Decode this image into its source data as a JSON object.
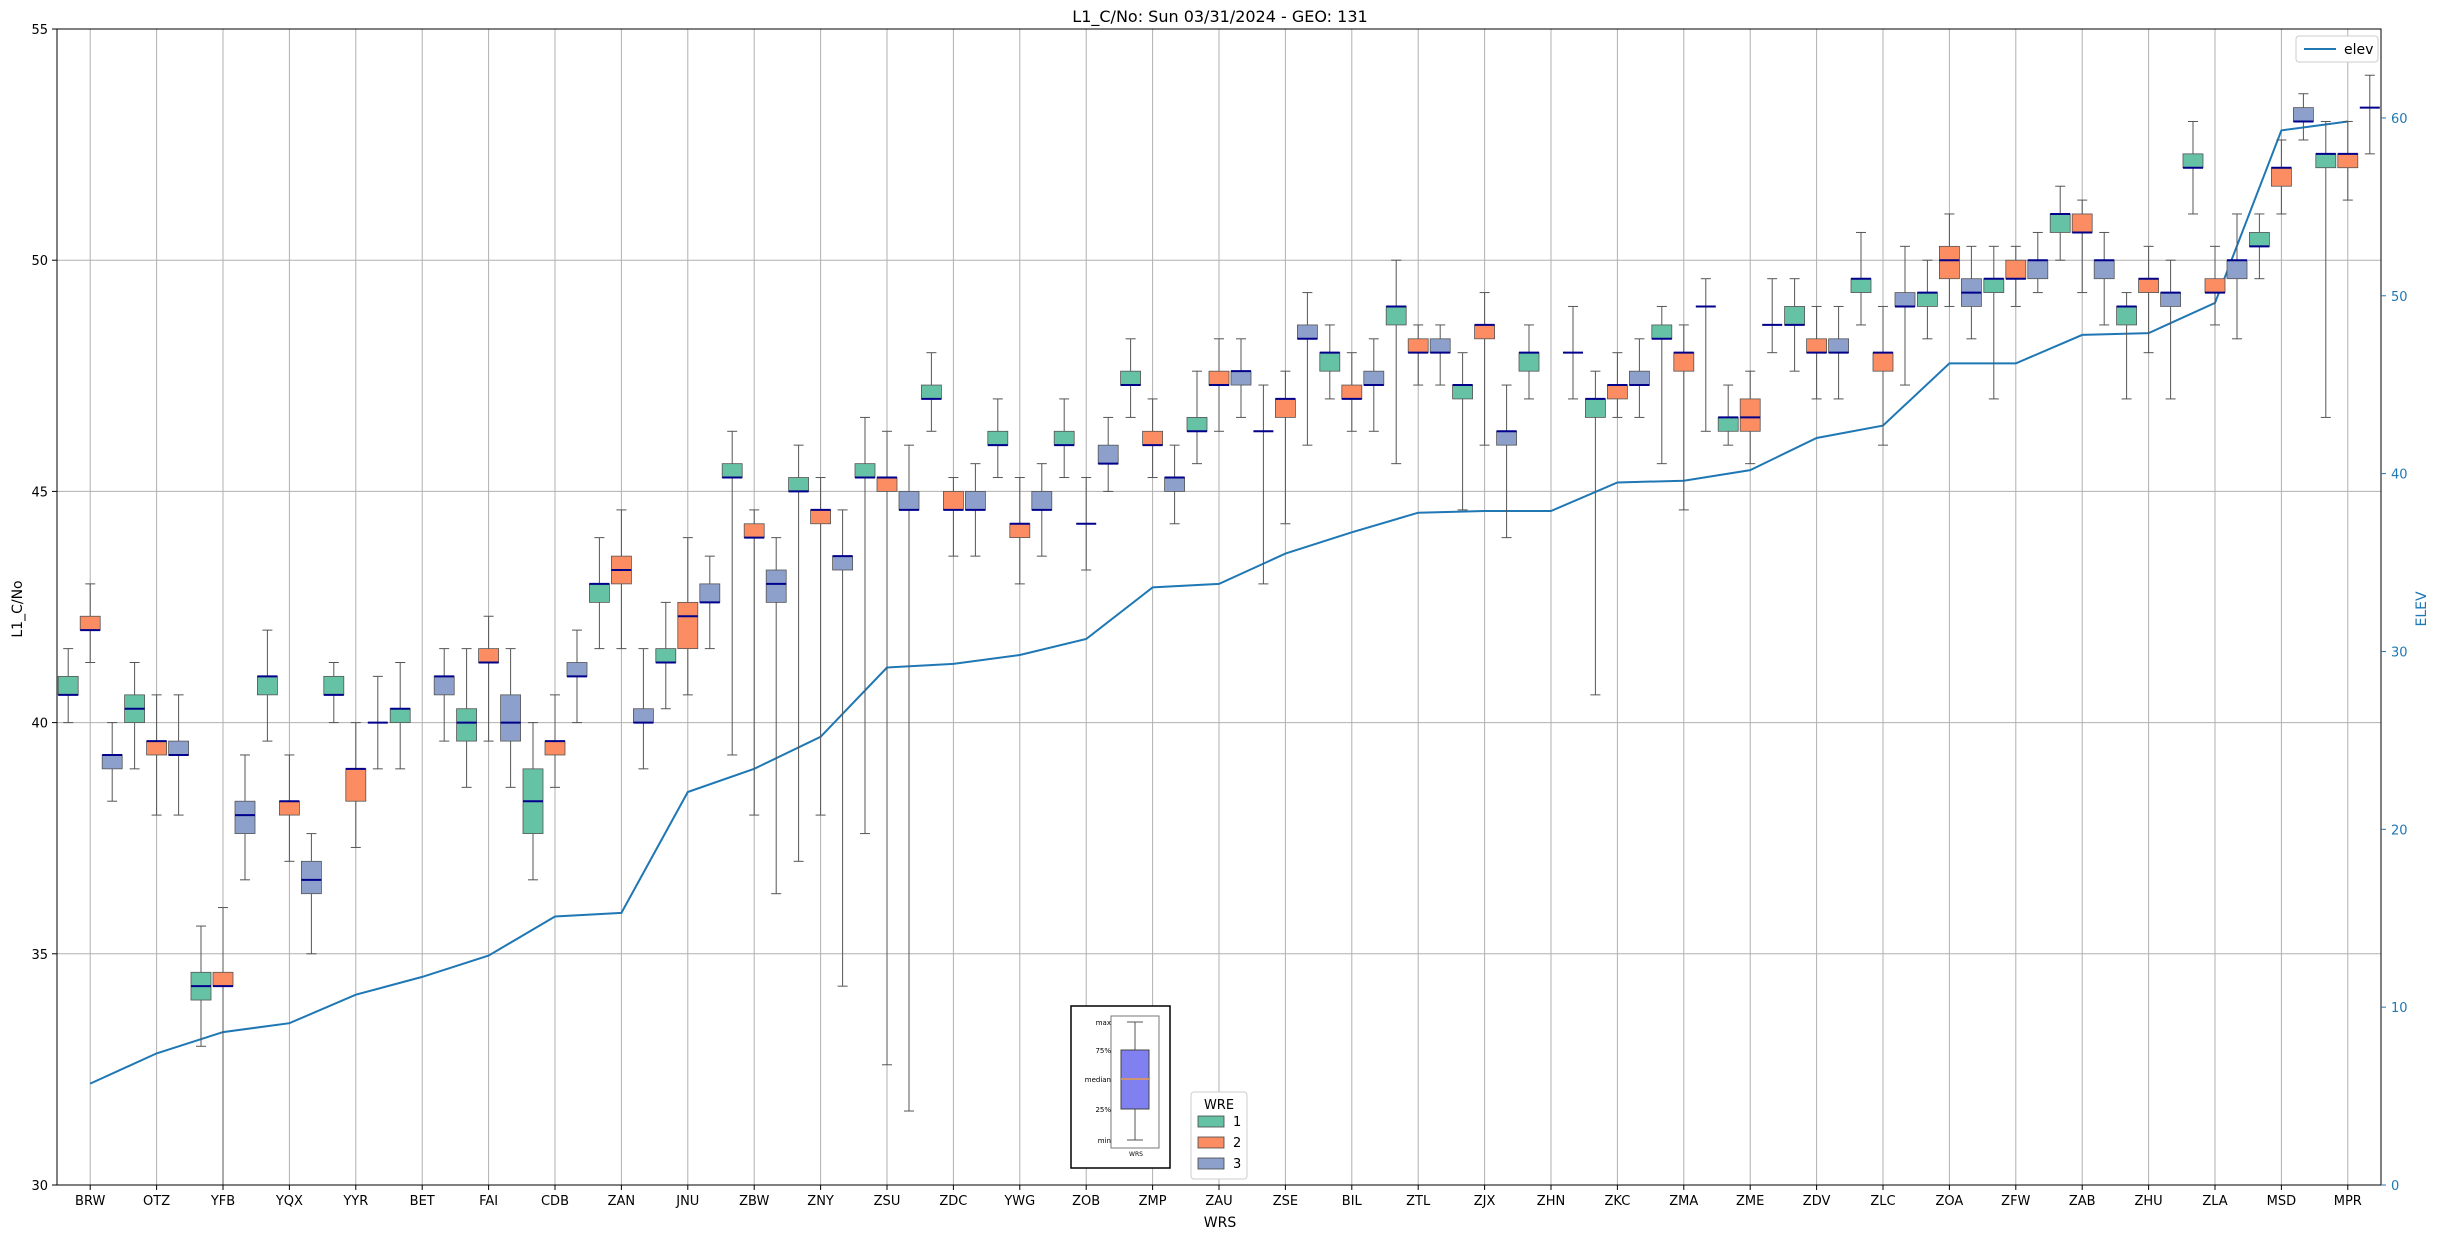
{
  "colors": {
    "wre1": "#66c2a5",
    "wre2": "#fc8d62",
    "wre3": "#8da0cb",
    "median": "#00008b",
    "elev": "#1f77b4",
    "grid": "#b0b0b0",
    "whisker": "#555555",
    "inset_box": "#8080f0"
  },
  "chart_data": {
    "type": "box",
    "title": "L1_C/No: Sun 03/31/2024 - GEO: 131",
    "xlabel": "WRS",
    "ylabel": "L1_C/No",
    "y2label": "ELEV",
    "ylim": [
      30,
      55
    ],
    "y2lim": [
      0,
      65
    ],
    "yticks": [
      "30",
      "35",
      "40",
      "45",
      "50",
      "55"
    ],
    "y2ticks": [
      "0",
      "10",
      "20",
      "30",
      "40",
      "50",
      "60"
    ],
    "grid": true,
    "categories": [
      "BRW",
      "OTZ",
      "YFB",
      "YQX",
      "YYR",
      "BET",
      "FAI",
      "CDB",
      "ZAN",
      "JNU",
      "ZBW",
      "ZNY",
      "ZSU",
      "ZDC",
      "YWG",
      "ZOB",
      "ZMP",
      "ZAU",
      "ZSE",
      "BIL",
      "ZTL",
      "ZJX",
      "ZHN",
      "ZKC",
      "ZMA",
      "ZME",
      "ZDV",
      "ZLC",
      "ZOA",
      "ZFW",
      "ZAB",
      "ZHU",
      "ZLA",
      "MSD",
      "MPR"
    ],
    "legend_wre": {
      "title": "WRE",
      "entries": [
        "1",
        "2",
        "3"
      ],
      "placement": "lower-center"
    },
    "legend_elev": {
      "entries": [
        "elev"
      ],
      "placement": "top-right"
    },
    "elev": [
      5.7,
      7.4,
      8.6,
      9.1,
      10.7,
      11.7,
      12.9,
      15.1,
      15.3,
      22.1,
      23.4,
      25.2,
      29.1,
      29.3,
      29.8,
      30.7,
      33.6,
      33.8,
      35.5,
      36.7,
      37.8,
      37.9,
      37.9,
      39.5,
      39.6,
      40.2,
      42.0,
      42.7,
      46.2,
      46.2,
      47.8,
      47.9,
      49.6,
      59.3,
      59.8
    ],
    "boxes": [
      {
        "c": "BRW",
        "w": 1,
        "min": 40.0,
        "q1": 40.6,
        "med": 40.6,
        "q3": 41.0,
        "max": 41.6
      },
      {
        "c": "BRW",
        "w": 2,
        "min": 41.3,
        "q1": 42.0,
        "med": 42.0,
        "q3": 42.3,
        "max": 43.0
      },
      {
        "c": "BRW",
        "w": 3,
        "min": 38.3,
        "q1": 39.0,
        "med": 39.3,
        "q3": 39.3,
        "max": 40.0
      },
      {
        "c": "OTZ",
        "w": 1,
        "min": 39.0,
        "q1": 40.0,
        "med": 40.3,
        "q3": 40.6,
        "max": 41.3
      },
      {
        "c": "OTZ",
        "w": 2,
        "min": 38.0,
        "q1": 39.3,
        "med": 39.6,
        "q3": 39.6,
        "max": 40.6
      },
      {
        "c": "OTZ",
        "w": 3,
        "min": 38.0,
        "q1": 39.3,
        "med": 39.3,
        "q3": 39.6,
        "max": 40.6
      },
      {
        "c": "YFB",
        "w": 1,
        "min": 33.0,
        "q1": 34.0,
        "med": 34.3,
        "q3": 34.6,
        "max": 35.6
      },
      {
        "c": "YFB",
        "w": 2,
        "min": 30.0,
        "q1": 34.3,
        "med": 34.3,
        "q3": 34.6,
        "max": 36.0
      },
      {
        "c": "YFB",
        "w": 3,
        "min": 36.6,
        "q1": 37.6,
        "med": 38.0,
        "q3": 38.3,
        "max": 39.3
      },
      {
        "c": "YQX",
        "w": 1,
        "min": 39.6,
        "q1": 40.6,
        "med": 41.0,
        "q3": 41.0,
        "max": 42.0
      },
      {
        "c": "YQX",
        "w": 2,
        "min": 37.0,
        "q1": 38.0,
        "med": 38.3,
        "q3": 38.3,
        "max": 39.3
      },
      {
        "c": "YQX",
        "w": 3,
        "min": 35.0,
        "q1": 36.3,
        "med": 36.6,
        "q3": 37.0,
        "max": 37.6
      },
      {
        "c": "YYR",
        "w": 1,
        "min": 40.0,
        "q1": 40.6,
        "med": 40.6,
        "q3": 41.0,
        "max": 41.3
      },
      {
        "c": "YYR",
        "w": 2,
        "min": 37.3,
        "q1": 38.3,
        "med": 39.0,
        "q3": 39.0,
        "max": 40.0
      },
      {
        "c": "YYR",
        "w": 3,
        "min": 39.0,
        "q1": 40.0,
        "med": 40.0,
        "q3": 40.0,
        "max": 41.0
      },
      {
        "c": "BET",
        "w": 1,
        "min": 39.0,
        "q1": 40.0,
        "med": 40.3,
        "q3": 40.3,
        "max": 41.3
      },
      {
        "c": "BET",
        "w": 3,
        "min": 39.6,
        "q1": 40.6,
        "med": 41.0,
        "q3": 41.0,
        "max": 41.6
      },
      {
        "c": "FAI",
        "w": 1,
        "min": 38.6,
        "q1": 39.6,
        "med": 40.0,
        "q3": 40.3,
        "max": 41.6
      },
      {
        "c": "FAI",
        "w": 2,
        "min": 39.6,
        "q1": 41.3,
        "med": 41.3,
        "q3": 41.6,
        "max": 42.3
      },
      {
        "c": "FAI",
        "w": 3,
        "min": 38.6,
        "q1": 39.6,
        "med": 40.0,
        "q3": 40.6,
        "max": 41.6
      },
      {
        "c": "CDB",
        "w": 1,
        "min": 36.6,
        "q1": 37.6,
        "med": 38.3,
        "q3": 39.0,
        "max": 40.0
      },
      {
        "c": "CDB",
        "w": 2,
        "min": 38.6,
        "q1": 39.3,
        "med": 39.6,
        "q3": 39.6,
        "max": 40.6
      },
      {
        "c": "CDB",
        "w": 3,
        "min": 40.0,
        "q1": 41.0,
        "med": 41.0,
        "q3": 41.3,
        "max": 42.0
      },
      {
        "c": "ZAN",
        "w": 1,
        "min": 41.6,
        "q1": 42.6,
        "med": 43.0,
        "q3": 43.0,
        "max": 44.0
      },
      {
        "c": "ZAN",
        "w": 2,
        "min": 41.6,
        "q1": 43.0,
        "med": 43.3,
        "q3": 43.6,
        "max": 44.6
      },
      {
        "c": "ZAN",
        "w": 3,
        "min": 39.0,
        "q1": 40.0,
        "med": 40.0,
        "q3": 40.3,
        "max": 41.6
      },
      {
        "c": "JNU",
        "w": 1,
        "min": 40.3,
        "q1": 41.3,
        "med": 41.3,
        "q3": 41.6,
        "max": 42.6
      },
      {
        "c": "JNU",
        "w": 2,
        "min": 40.6,
        "q1": 41.6,
        "med": 42.3,
        "q3": 42.6,
        "max": 44.0
      },
      {
        "c": "JNU",
        "w": 3,
        "min": 41.6,
        "q1": 42.6,
        "med": 42.6,
        "q3": 43.0,
        "max": 43.6
      },
      {
        "c": "ZBW",
        "w": 1,
        "min": 39.3,
        "q1": 45.3,
        "med": 45.3,
        "q3": 45.6,
        "max": 46.3
      },
      {
        "c": "ZBW",
        "w": 2,
        "min": 38.0,
        "q1": 44.0,
        "med": 44.0,
        "q3": 44.3,
        "max": 44.6
      },
      {
        "c": "ZBW",
        "w": 3,
        "min": 36.3,
        "q1": 42.6,
        "med": 43.0,
        "q3": 43.3,
        "max": 44.0
      },
      {
        "c": "ZNY",
        "w": 1,
        "min": 37.0,
        "q1": 45.0,
        "med": 45.0,
        "q3": 45.3,
        "max": 46.0
      },
      {
        "c": "ZNY",
        "w": 2,
        "min": 38.0,
        "q1": 44.3,
        "med": 44.6,
        "q3": 44.6,
        "max": 45.3
      },
      {
        "c": "ZNY",
        "w": 3,
        "min": 34.3,
        "q1": 43.3,
        "med": 43.6,
        "q3": 43.6,
        "max": 44.6
      },
      {
        "c": "ZSU",
        "w": 1,
        "min": 37.6,
        "q1": 45.3,
        "med": 45.3,
        "q3": 45.6,
        "max": 46.6
      },
      {
        "c": "ZSU",
        "w": 2,
        "min": 32.6,
        "q1": 45.0,
        "med": 45.3,
        "q3": 45.3,
        "max": 46.3
      },
      {
        "c": "ZSU",
        "w": 3,
        "min": 31.6,
        "q1": 44.6,
        "med": 44.6,
        "q3": 45.0,
        "max": 46.0
      },
      {
        "c": "ZDC",
        "w": 1,
        "min": 46.3,
        "q1": 47.0,
        "med": 47.0,
        "q3": 47.3,
        "max": 48.0
      },
      {
        "c": "ZDC",
        "w": 2,
        "min": 43.6,
        "q1": 44.6,
        "med": 44.6,
        "q3": 45.0,
        "max": 45.3
      },
      {
        "c": "ZDC",
        "w": 3,
        "min": 43.6,
        "q1": 44.6,
        "med": 44.6,
        "q3": 45.0,
        "max": 45.6
      },
      {
        "c": "YWG",
        "w": 1,
        "min": 45.3,
        "q1": 46.0,
        "med": 46.0,
        "q3": 46.3,
        "max": 47.0
      },
      {
        "c": "YWG",
        "w": 2,
        "min": 43.0,
        "q1": 44.0,
        "med": 44.3,
        "q3": 44.3,
        "max": 45.3
      },
      {
        "c": "YWG",
        "w": 3,
        "min": 43.6,
        "q1": 44.6,
        "med": 44.6,
        "q3": 45.0,
        "max": 45.6
      },
      {
        "c": "ZOB",
        "w": 1,
        "min": 45.3,
        "q1": 46.0,
        "med": 46.0,
        "q3": 46.3,
        "max": 47.0
      },
      {
        "c": "ZOB",
        "w": 2,
        "min": 43.3,
        "q1": 44.3,
        "med": 44.3,
        "q3": 44.3,
        "max": 45.3
      },
      {
        "c": "ZOB",
        "w": 3,
        "min": 45.0,
        "q1": 45.6,
        "med": 45.6,
        "q3": 46.0,
        "max": 46.6
      },
      {
        "c": "ZMP",
        "w": 1,
        "min": 46.6,
        "q1": 47.3,
        "med": 47.3,
        "q3": 47.6,
        "max": 48.3
      },
      {
        "c": "ZMP",
        "w": 2,
        "min": 45.3,
        "q1": 46.0,
        "med": 46.0,
        "q3": 46.3,
        "max": 47.0
      },
      {
        "c": "ZMP",
        "w": 3,
        "min": 44.3,
        "q1": 45.0,
        "med": 45.3,
        "q3": 45.3,
        "max": 46.0
      },
      {
        "c": "ZAU",
        "w": 1,
        "min": 45.6,
        "q1": 46.3,
        "med": 46.3,
        "q3": 46.6,
        "max": 47.6
      },
      {
        "c": "ZAU",
        "w": 2,
        "min": 46.3,
        "q1": 47.3,
        "med": 47.3,
        "q3": 47.6,
        "max": 48.3
      },
      {
        "c": "ZAU",
        "w": 3,
        "min": 46.6,
        "q1": 47.3,
        "med": 47.6,
        "q3": 47.6,
        "max": 48.3
      },
      {
        "c": "ZSE",
        "w": 1,
        "min": 43.0,
        "q1": 46.3,
        "med": 46.3,
        "q3": 46.3,
        "max": 47.3
      },
      {
        "c": "ZSE",
        "w": 2,
        "min": 44.3,
        "q1": 46.6,
        "med": 47.0,
        "q3": 47.0,
        "max": 47.6
      },
      {
        "c": "ZSE",
        "w": 3,
        "min": 46.0,
        "q1": 48.3,
        "med": 48.3,
        "q3": 48.6,
        "max": 49.3
      },
      {
        "c": "BIL",
        "w": 1,
        "min": 47.0,
        "q1": 47.6,
        "med": 48.0,
        "q3": 48.0,
        "max": 48.6
      },
      {
        "c": "BIL",
        "w": 2,
        "min": 46.3,
        "q1": 47.0,
        "med": 47.0,
        "q3": 47.3,
        "max": 48.0
      },
      {
        "c": "BIL",
        "w": 3,
        "min": 46.3,
        "q1": 47.3,
        "med": 47.3,
        "q3": 47.6,
        "max": 48.3
      },
      {
        "c": "ZTL",
        "w": 1,
        "min": 45.6,
        "q1": 48.6,
        "med": 49.0,
        "q3": 49.0,
        "max": 50.0
      },
      {
        "c": "ZTL",
        "w": 2,
        "min": 47.3,
        "q1": 48.0,
        "med": 48.0,
        "q3": 48.3,
        "max": 48.6
      },
      {
        "c": "ZTL",
        "w": 3,
        "min": 47.3,
        "q1": 48.0,
        "med": 48.0,
        "q3": 48.3,
        "max": 48.6
      },
      {
        "c": "ZJX",
        "w": 1,
        "min": 44.6,
        "q1": 47.0,
        "med": 47.3,
        "q3": 47.3,
        "max": 48.0
      },
      {
        "c": "ZJX",
        "w": 2,
        "min": 46.0,
        "q1": 48.3,
        "med": 48.6,
        "q3": 48.6,
        "max": 49.3
      },
      {
        "c": "ZJX",
        "w": 3,
        "min": 44.0,
        "q1": 46.0,
        "med": 46.3,
        "q3": 46.3,
        "max": 47.3
      },
      {
        "c": "ZHN",
        "w": 1,
        "min": 47.0,
        "q1": 47.6,
        "med": 48.0,
        "q3": 48.0,
        "max": 48.6
      },
      {
        "c": "ZHN",
        "w": 3,
        "min": 47.0,
        "q1": 48.0,
        "med": 48.0,
        "q3": 48.0,
        "max": 49.0
      },
      {
        "c": "ZKC",
        "w": 1,
        "min": 40.6,
        "q1": 46.6,
        "med": 47.0,
        "q3": 47.0,
        "max": 47.6
      },
      {
        "c": "ZKC",
        "w": 2,
        "min": 46.6,
        "q1": 47.0,
        "med": 47.3,
        "q3": 47.3,
        "max": 48.0
      },
      {
        "c": "ZKC",
        "w": 3,
        "min": 46.6,
        "q1": 47.3,
        "med": 47.3,
        "q3": 47.6,
        "max": 48.3
      },
      {
        "c": "ZMA",
        "w": 1,
        "min": 45.6,
        "q1": 48.3,
        "med": 48.3,
        "q3": 48.6,
        "max": 49.0
      },
      {
        "c": "ZMA",
        "w": 2,
        "min": 44.6,
        "q1": 47.6,
        "med": 48.0,
        "q3": 48.0,
        "max": 48.6
      },
      {
        "c": "ZMA",
        "w": 3,
        "min": 46.3,
        "q1": 49.0,
        "med": 49.0,
        "q3": 49.0,
        "max": 49.6
      },
      {
        "c": "ZME",
        "w": 1,
        "min": 46.0,
        "q1": 46.3,
        "med": 46.6,
        "q3": 46.6,
        "max": 47.3
      },
      {
        "c": "ZME",
        "w": 2,
        "min": 45.6,
        "q1": 46.3,
        "med": 46.6,
        "q3": 47.0,
        "max": 47.6
      },
      {
        "c": "ZME",
        "w": 3,
        "min": 48.0,
        "q1": 48.6,
        "med": 48.6,
        "q3": 48.6,
        "max": 49.6
      },
      {
        "c": "ZDV",
        "w": 1,
        "min": 47.6,
        "q1": 48.6,
        "med": 48.6,
        "q3": 49.0,
        "max": 49.6
      },
      {
        "c": "ZDV",
        "w": 2,
        "min": 47.0,
        "q1": 48.0,
        "med": 48.0,
        "q3": 48.3,
        "max": 49.0
      },
      {
        "c": "ZDV",
        "w": 3,
        "min": 47.0,
        "q1": 48.0,
        "med": 48.0,
        "q3": 48.3,
        "max": 49.0
      },
      {
        "c": "ZLC",
        "w": 1,
        "min": 48.6,
        "q1": 49.3,
        "med": 49.6,
        "q3": 49.6,
        "max": 50.6
      },
      {
        "c": "ZLC",
        "w": 2,
        "min": 46.0,
        "q1": 47.6,
        "med": 48.0,
        "q3": 48.0,
        "max": 49.0
      },
      {
        "c": "ZLC",
        "w": 3,
        "min": 47.3,
        "q1": 49.0,
        "med": 49.0,
        "q3": 49.3,
        "max": 50.3
      },
      {
        "c": "ZOA",
        "w": 1,
        "min": 48.3,
        "q1": 49.0,
        "med": 49.3,
        "q3": 49.3,
        "max": 50.0
      },
      {
        "c": "ZOA",
        "w": 2,
        "min": 49.0,
        "q1": 49.6,
        "med": 50.0,
        "q3": 50.3,
        "max": 51.0
      },
      {
        "c": "ZOA",
        "w": 3,
        "min": 48.3,
        "q1": 49.0,
        "med": 49.3,
        "q3": 49.6,
        "max": 50.3
      },
      {
        "c": "ZFW",
        "w": 1,
        "min": 47.0,
        "q1": 49.3,
        "med": 49.6,
        "q3": 49.6,
        "max": 50.3
      },
      {
        "c": "ZFW",
        "w": 2,
        "min": 49.0,
        "q1": 49.6,
        "med": 49.6,
        "q3": 50.0,
        "max": 50.3
      },
      {
        "c": "ZFW",
        "w": 3,
        "min": 49.3,
        "q1": 49.6,
        "med": 50.0,
        "q3": 50.0,
        "max": 50.6
      },
      {
        "c": "ZAB",
        "w": 1,
        "min": 50.0,
        "q1": 50.6,
        "med": 51.0,
        "q3": 51.0,
        "max": 51.6
      },
      {
        "c": "ZAB",
        "w": 2,
        "min": 49.3,
        "q1": 50.6,
        "med": 50.6,
        "q3": 51.0,
        "max": 51.3
      },
      {
        "c": "ZAB",
        "w": 3,
        "min": 48.6,
        "q1": 49.6,
        "med": 50.0,
        "q3": 50.0,
        "max": 50.6
      },
      {
        "c": "ZHU",
        "w": 1,
        "min": 47.0,
        "q1": 48.6,
        "med": 49.0,
        "q3": 49.0,
        "max": 49.3
      },
      {
        "c": "ZHU",
        "w": 2,
        "min": 48.0,
        "q1": 49.3,
        "med": 49.6,
        "q3": 49.6,
        "max": 50.3
      },
      {
        "c": "ZHU",
        "w": 3,
        "min": 47.0,
        "q1": 49.0,
        "med": 49.3,
        "q3": 49.3,
        "max": 50.0
      },
      {
        "c": "ZLA",
        "w": 1,
        "min": 51.0,
        "q1": 52.0,
        "med": 52.0,
        "q3": 52.3,
        "max": 53.0
      },
      {
        "c": "ZLA",
        "w": 2,
        "min": 48.6,
        "q1": 49.3,
        "med": 49.3,
        "q3": 49.6,
        "max": 50.3
      },
      {
        "c": "ZLA",
        "w": 3,
        "min": 48.3,
        "q1": 49.6,
        "med": 50.0,
        "q3": 50.0,
        "max": 51.0
      },
      {
        "c": "MSD",
        "w": 1,
        "min": 49.6,
        "q1": 50.3,
        "med": 50.3,
        "q3": 50.6,
        "max": 51.0
      },
      {
        "c": "MSD",
        "w": 2,
        "min": 51.0,
        "q1": 51.6,
        "med": 52.0,
        "q3": 52.0,
        "max": 52.6
      },
      {
        "c": "MSD",
        "w": 3,
        "min": 52.6,
        "q1": 53.0,
        "med": 53.0,
        "q3": 53.3,
        "max": 53.6
      },
      {
        "c": "MPR",
        "w": 1,
        "min": 46.6,
        "q1": 52.0,
        "med": 52.3,
        "q3": 52.3,
        "max": 53.0
      },
      {
        "c": "MPR",
        "w": 2,
        "min": 51.3,
        "q1": 52.0,
        "med": 52.3,
        "q3": 52.3,
        "max": 53.0
      },
      {
        "c": "MPR",
        "w": 3,
        "min": 52.3,
        "q1": 53.3,
        "med": 53.3,
        "q3": 53.3,
        "max": 54.0
      }
    ],
    "inset_key": {
      "labels": [
        "max",
        "75%",
        "median",
        "25%",
        "min"
      ],
      "xlabel": "WRS"
    }
  }
}
